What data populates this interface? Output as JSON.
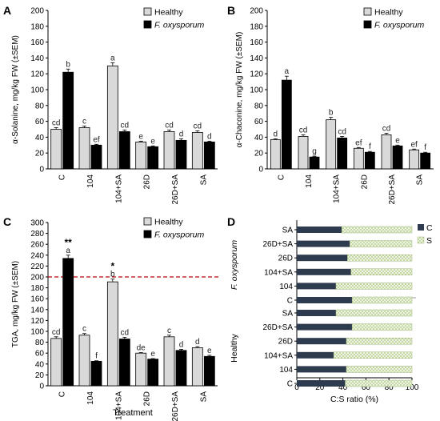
{
  "colors": {
    "healthy": "#d9d9d9",
    "infected": "#000000",
    "c_bar": "#2e3a4e",
    "s_fill": "#a9c47a",
    "s_bg": "#eef4e2",
    "threshold": "#c00000",
    "axis": "#000000"
  },
  "chart_data": [
    {
      "panel": "A",
      "type": "bar",
      "ylabel": "α-Solanine, mg/kg FW (±SEM)",
      "categories": [
        "C",
        "104",
        "104+SA",
        "26D",
        "26D+SA",
        "SA"
      ],
      "ylim": [
        0,
        200
      ],
      "yticks": [
        "0",
        "20",
        "40",
        "60",
        "80",
        "100",
        "120",
        "140",
        "160",
        "180",
        "200"
      ],
      "legend": [
        "Healthy",
        "F. oxysporum"
      ],
      "series": [
        {
          "name": "Healthy",
          "values": [
            50,
            52,
            130,
            34,
            47,
            46
          ],
          "errors": [
            2,
            2,
            4,
            1,
            2,
            2
          ],
          "labels": [
            "cd",
            "c",
            "a",
            "e",
            "cd",
            "cd"
          ]
        },
        {
          "name": "F. oxysporum",
          "values": [
            122,
            30,
            47,
            28,
            36,
            34
          ],
          "errors": [
            4,
            1,
            2,
            1,
            2,
            1
          ],
          "labels": [
            "b",
            "ef",
            "cd",
            "e",
            "d",
            "d"
          ]
        }
      ]
    },
    {
      "panel": "B",
      "type": "bar",
      "ylabel": "α-Chaconine, mg/kg FW (±SEM)",
      "categories": [
        "C",
        "104",
        "104+SA",
        "26D",
        "26D+SA",
        "SA"
      ],
      "ylim": [
        0,
        200
      ],
      "yticks": [
        "0",
        "20",
        "40",
        "60",
        "80",
        "100",
        "120",
        "140",
        "160",
        "180",
        "200"
      ],
      "legend": [
        "Healthy",
        "F. oxysporum"
      ],
      "series": [
        {
          "name": "Healthy",
          "values": [
            37,
            41,
            62,
            26,
            43,
            24
          ],
          "errors": [
            1,
            2,
            3,
            1,
            2,
            1
          ],
          "labels": [
            "d",
            "cd",
            "b",
            "ef",
            "cd",
            "ef"
          ]
        },
        {
          "name": "F. oxysporum",
          "values": [
            112,
            15,
            39,
            21,
            29,
            20
          ],
          "errors": [
            5,
            1,
            2,
            1,
            1,
            1
          ],
          "labels": [
            "a",
            "g",
            "cd",
            "f",
            "e",
            "f"
          ]
        }
      ]
    },
    {
      "panel": "C",
      "type": "bar",
      "ylabel": "TGA, mg/kg FW (±SEM)",
      "xlabel": "Treatment",
      "categories": [
        "C",
        "104",
        "104+SA",
        "26D",
        "26D+SA",
        "SA"
      ],
      "ylim": [
        0,
        300
      ],
      "yticks": [
        "0",
        "20",
        "40",
        "60",
        "80",
        "100",
        "120",
        "140",
        "160",
        "180",
        "200",
        "220",
        "240",
        "260",
        "280",
        "300"
      ],
      "threshold": 200,
      "legend": [
        "Healthy",
        "F. oxysporum"
      ],
      "series": [
        {
          "name": "Healthy",
          "values": [
            87,
            93,
            191,
            60,
            90,
            70
          ],
          "errors": [
            3,
            3,
            5,
            1,
            3,
            2
          ],
          "labels": [
            "cd",
            "c",
            "b",
            "de",
            "c",
            "d"
          ]
        },
        {
          "name": "F. oxysporum",
          "values": [
            234,
            45,
            86,
            49,
            65,
            54
          ],
          "errors": [
            6,
            1,
            3,
            1,
            2,
            2
          ],
          "labels": [
            "a",
            "f",
            "cd",
            "e",
            "d",
            "e"
          ]
        }
      ],
      "annotations": [
        "**",
        "*"
      ]
    },
    {
      "panel": "D",
      "type": "bar",
      "orientation": "horizontal-stacked",
      "xlabel": "C:S ratio (%)",
      "xlim": [
        0,
        100
      ],
      "xticks": [
        "0",
        "20",
        "40",
        "60",
        "80",
        "100"
      ],
      "legend": [
        "C",
        "S"
      ],
      "groups": [
        {
          "name": "F. oxysporum",
          "categories": [
            "SA",
            "26D+SA",
            "26D",
            "104+SA",
            "104",
            "C"
          ],
          "c_values": [
            39,
            46,
            44,
            47,
            34,
            48
          ]
        },
        {
          "name": "Healthy",
          "categories": [
            "SA",
            "26D+SA",
            "26D",
            "104+SA",
            "104",
            "C"
          ],
          "c_values": [
            34,
            48,
            43,
            32,
            43,
            42
          ]
        }
      ]
    }
  ]
}
